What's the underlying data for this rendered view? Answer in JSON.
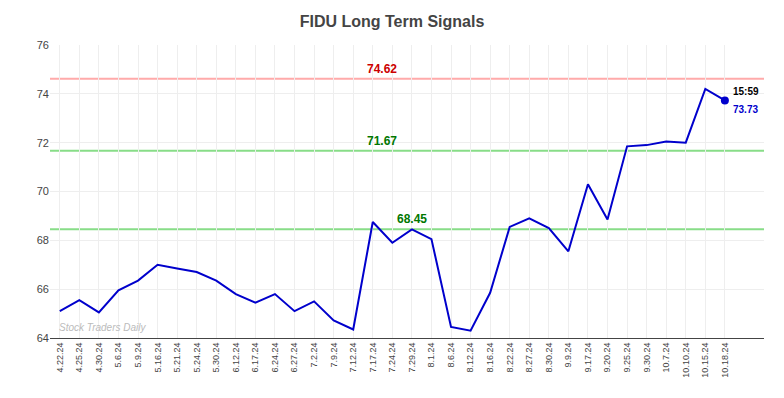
{
  "chart_data": {
    "type": "line",
    "title": "FIDU Long Term Signals",
    "categories": [
      "4.22.24",
      "4.25.24",
      "4.30.24",
      "5.6.24",
      "5.9.24",
      "5.16.24",
      "5.21.24",
      "5.24.24",
      "5.30.24",
      "6.12.24",
      "6.17.24",
      "6.24.24",
      "6.27.24",
      "7.2.24",
      "7.9.24",
      "7.12.24",
      "7.17.24",
      "7.24.24",
      "7.29.24",
      "8.1.24",
      "8.6.24",
      "8.12.24",
      "8.16.24",
      "8.22.24",
      "8.27.24",
      "8.30.24",
      "9.9.24",
      "9.17.24",
      "9.20.24",
      "9.25.24",
      "9.30.24",
      "10.7.24",
      "10.10.24",
      "10.15.24",
      "10.18.24"
    ],
    "values": [
      65.1,
      65.55,
      65.05,
      65.95,
      66.35,
      67.0,
      66.85,
      66.7,
      66.35,
      65.8,
      65.45,
      65.8,
      65.1,
      65.5,
      64.72,
      64.35,
      68.75,
      67.9,
      68.45,
      68.05,
      64.45,
      64.3,
      65.85,
      68.55,
      68.9,
      68.5,
      67.55,
      70.3,
      68.85,
      71.85,
      71.9,
      72.05,
      72.0,
      74.2,
      73.73
    ],
    "color": "#0000cc",
    "hlines": [
      {
        "value": 74.62,
        "label": "74.62",
        "color": "#ffaaaa",
        "label_color": "#cc0000"
      },
      {
        "value": 71.67,
        "label": "71.67",
        "color": "#88dd88",
        "label_color": "#007700"
      },
      {
        "value": 68.45,
        "label": "68.45",
        "color": "#88dd88",
        "label_color": "#007700"
      }
    ],
    "last_time": "15:59",
    "last_price_label": "73.73",
    "watermark": "Stock Traders Daily",
    "ylim": [
      64,
      76
    ],
    "yticks": [
      64,
      66,
      68,
      70,
      72,
      74,
      76
    ],
    "grid": true
  }
}
